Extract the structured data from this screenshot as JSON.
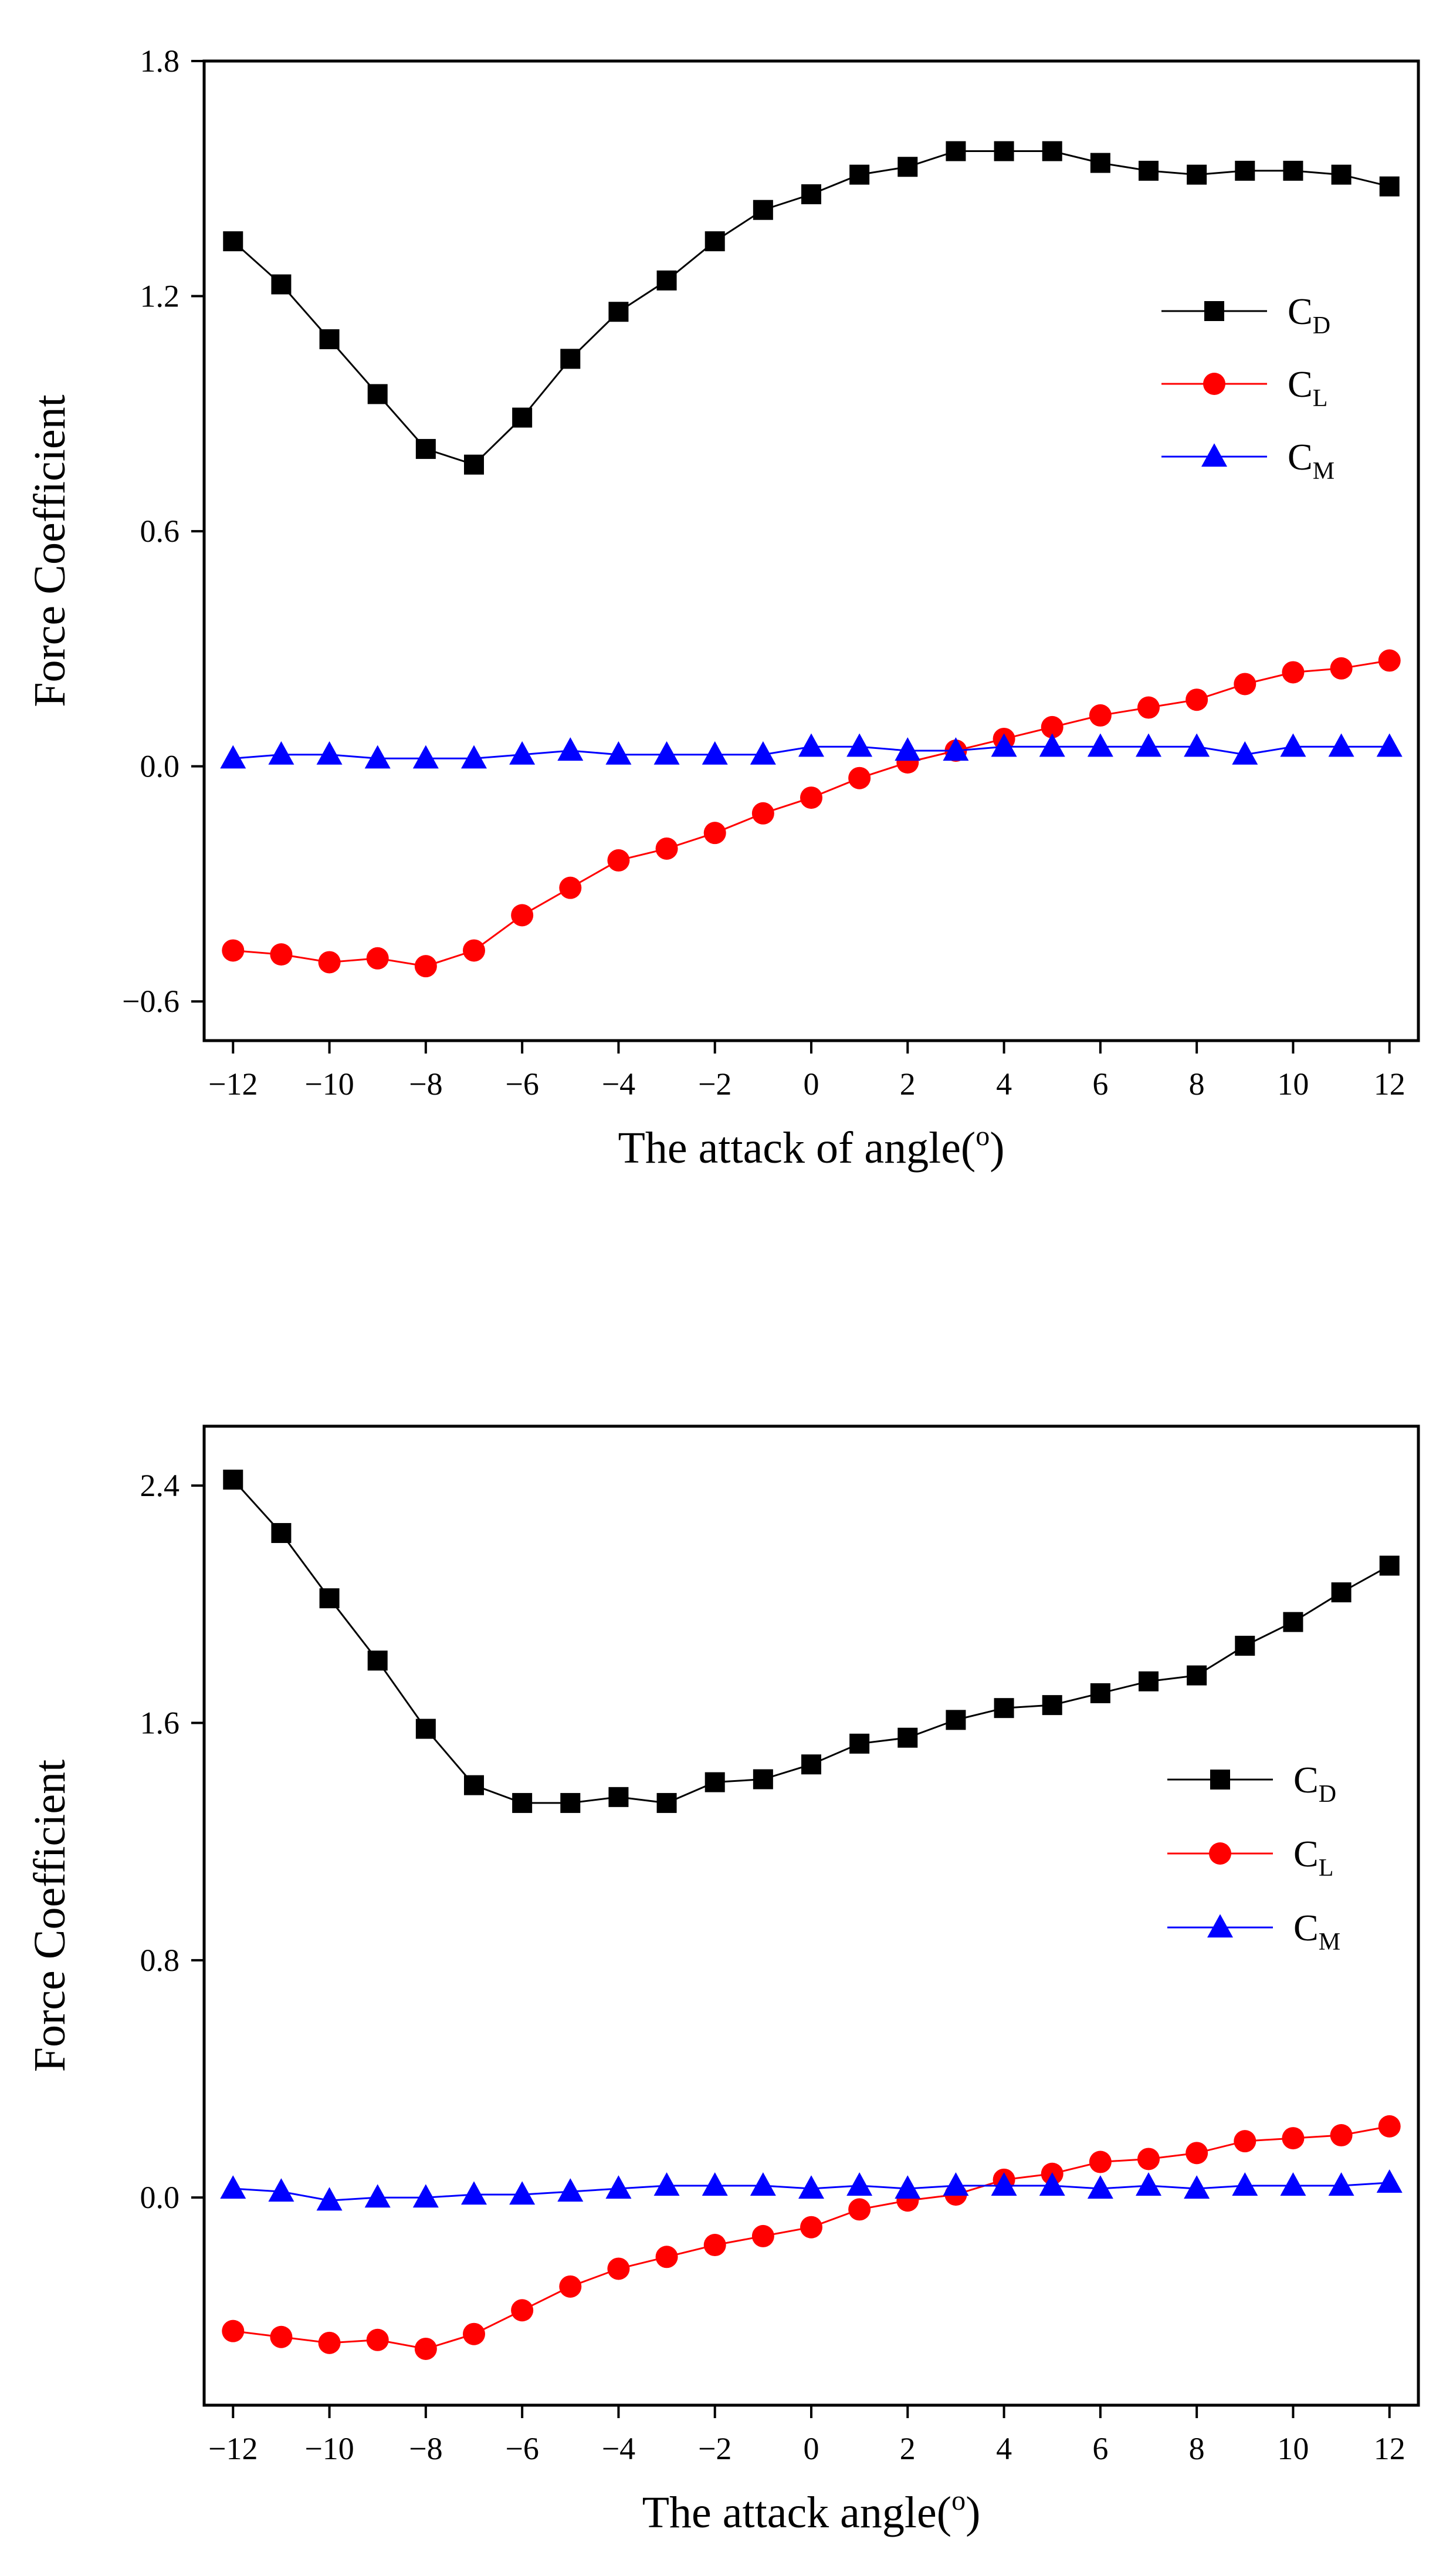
{
  "chart_data": [
    {
      "type": "line",
      "title": "",
      "xlabel": "The attack of angle(",
      "xlabel_superscript": "o",
      "xlabel_close": ")",
      "ylabel": "Force Coefficient",
      "xlim": [
        -12.6,
        12.6
      ],
      "ylim": [
        -0.7,
        1.8
      ],
      "xticks": [
        -12,
        -10,
        -8,
        -6,
        -4,
        -2,
        0,
        2,
        4,
        6,
        8,
        10,
        12
      ],
      "xtick_labels": [
        "−12",
        "−10",
        "−8",
        "−6",
        "−4",
        "−2",
        "0",
        "2",
        "4",
        "6",
        "8",
        "10",
        "12"
      ],
      "yticks": [
        -0.6,
        0.0,
        0.6,
        1.2,
        1.8
      ],
      "ytick_labels": [
        "−0.6",
        "0.0",
        "0.6",
        "1.2",
        "1.8"
      ],
      "legend_position": "right",
      "x": [
        -12,
        -11,
        -10,
        -9,
        -8,
        -7,
        -6,
        -5,
        -4,
        -3,
        -2,
        -1,
        0,
        1,
        2,
        3,
        4,
        5,
        6,
        7,
        8,
        9,
        10,
        11,
        12
      ],
      "series": [
        {
          "name": "C",
          "subscript": "D",
          "marker": "square",
          "color": "#000000",
          "values": [
            1.34,
            1.23,
            1.09,
            0.95,
            0.81,
            0.77,
            0.89,
            1.04,
            1.16,
            1.24,
            1.34,
            1.42,
            1.46,
            1.51,
            1.53,
            1.57,
            1.57,
            1.57,
            1.54,
            1.52,
            1.51,
            1.52,
            1.52,
            1.51,
            1.48
          ]
        },
        {
          "name": "C",
          "subscript": "L",
          "marker": "circle",
          "color": "#ff0000",
          "values": [
            -0.47,
            -0.48,
            -0.5,
            -0.49,
            -0.51,
            -0.47,
            -0.38,
            -0.31,
            -0.24,
            -0.21,
            -0.17,
            -0.12,
            -0.08,
            -0.03,
            0.01,
            0.04,
            0.07,
            0.1,
            0.13,
            0.15,
            0.17,
            0.21,
            0.24,
            0.25,
            0.27
          ]
        },
        {
          "name": "C",
          "subscript": "M",
          "marker": "triangle",
          "color": "#0000ff",
          "values": [
            0.02,
            0.03,
            0.03,
            0.02,
            0.02,
            0.02,
            0.03,
            0.04,
            0.03,
            0.03,
            0.03,
            0.03,
            0.05,
            0.05,
            0.04,
            0.04,
            0.05,
            0.05,
            0.05,
            0.05,
            0.05,
            0.03,
            0.05,
            0.05,
            0.05
          ]
        }
      ]
    },
    {
      "type": "line",
      "title": "",
      "xlabel": "The attack angle(",
      "xlabel_superscript": "o",
      "xlabel_close": ")",
      "ylabel": "Force Coefficient",
      "xlim": [
        -12.6,
        12.6
      ],
      "ylim": [
        -0.7,
        2.6
      ],
      "xticks": [
        -12,
        -10,
        -8,
        -6,
        -4,
        -2,
        0,
        2,
        4,
        6,
        8,
        10,
        12
      ],
      "xtick_labels": [
        "−12",
        "−10",
        "−8",
        "−6",
        "−4",
        "−2",
        "0",
        "2",
        "4",
        "6",
        "8",
        "10",
        "12"
      ],
      "yticks": [
        0.0,
        0.8,
        1.6,
        2.4
      ],
      "ytick_labels": [
        "0.0",
        "0.8",
        "1.6",
        "2.4"
      ],
      "legend_position": "right",
      "x": [
        -12,
        -11,
        -10,
        -9,
        -8,
        -7,
        -6,
        -5,
        -4,
        -3,
        -2,
        -1,
        0,
        1,
        2,
        3,
        4,
        5,
        6,
        7,
        8,
        9,
        10,
        11,
        12
      ],
      "series": [
        {
          "name": "C",
          "subscript": "D",
          "marker": "square",
          "color": "#000000",
          "values": [
            2.42,
            2.24,
            2.02,
            1.81,
            1.58,
            1.39,
            1.33,
            1.33,
            1.35,
            1.33,
            1.4,
            1.41,
            1.46,
            1.53,
            1.55,
            1.61,
            1.65,
            1.66,
            1.7,
            1.74,
            1.76,
            1.86,
            1.94,
            2.04,
            2.13
          ]
        },
        {
          "name": "C",
          "subscript": "L",
          "marker": "circle",
          "color": "#ff0000",
          "values": [
            -0.45,
            -0.47,
            -0.49,
            -0.48,
            -0.51,
            -0.46,
            -0.38,
            -0.3,
            -0.24,
            -0.2,
            -0.16,
            -0.13,
            -0.1,
            -0.04,
            -0.01,
            0.01,
            0.06,
            0.08,
            0.12,
            0.13,
            0.15,
            0.19,
            0.2,
            0.21,
            0.24
          ]
        },
        {
          "name": "C",
          "subscript": "M",
          "marker": "triangle",
          "color": "#0000ff",
          "values": [
            0.03,
            0.02,
            -0.01,
            0.0,
            0.0,
            0.01,
            0.01,
            0.02,
            0.03,
            0.04,
            0.04,
            0.04,
            0.03,
            0.04,
            0.03,
            0.04,
            0.04,
            0.04,
            0.03,
            0.04,
            0.03,
            0.04,
            0.04,
            0.04,
            0.05
          ]
        }
      ]
    }
  ]
}
